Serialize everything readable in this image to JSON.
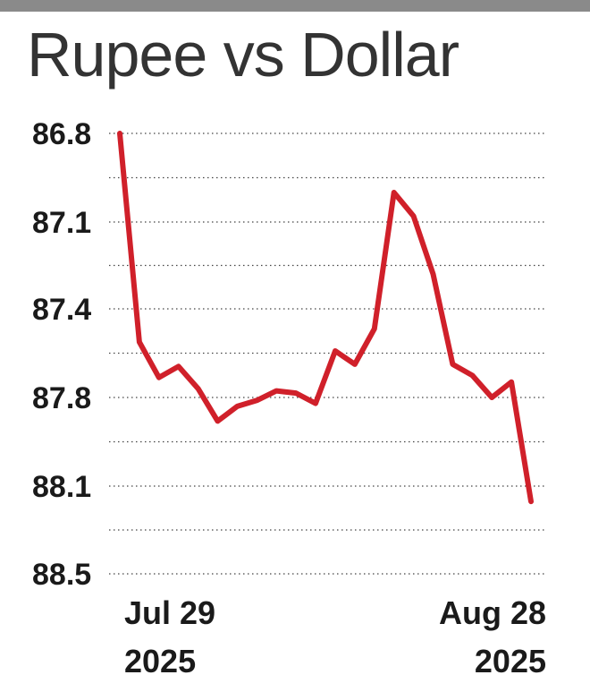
{
  "title": "Rupee vs Dollar",
  "colors": {
    "line": "#d0202a",
    "grid": "#444444",
    "text": "#1a1a1a",
    "top_bar": "#8a8a8a"
  },
  "chart_data": {
    "type": "line",
    "title": "Rupee vs Dollar",
    "xlabel": "",
    "ylabel": "",
    "y_axis_reversed": true,
    "ylim": [
      86.8,
      88.5
    ],
    "y_ticks": [
      "86.8",
      "87.1",
      "87.4",
      "87.8",
      "88.1",
      "88.5"
    ],
    "x_ticks": [
      {
        "line1": "Jul 29",
        "line2": "2025"
      },
      {
        "line1": "Aug 28",
        "line2": "2025"
      }
    ],
    "grid": true,
    "x_start": "2025-07-29",
    "x_end": "2025-08-28",
    "series": [
      {
        "values": [
          86.8,
          87.55,
          87.71,
          87.66,
          87.76,
          87.88,
          87.83,
          87.81,
          87.77,
          87.78,
          87.82,
          87.59,
          87.65,
          87.49,
          87.0,
          87.08,
          87.28,
          87.65,
          87.7,
          87.8,
          87.73,
          88.17
        ]
      }
    ]
  }
}
